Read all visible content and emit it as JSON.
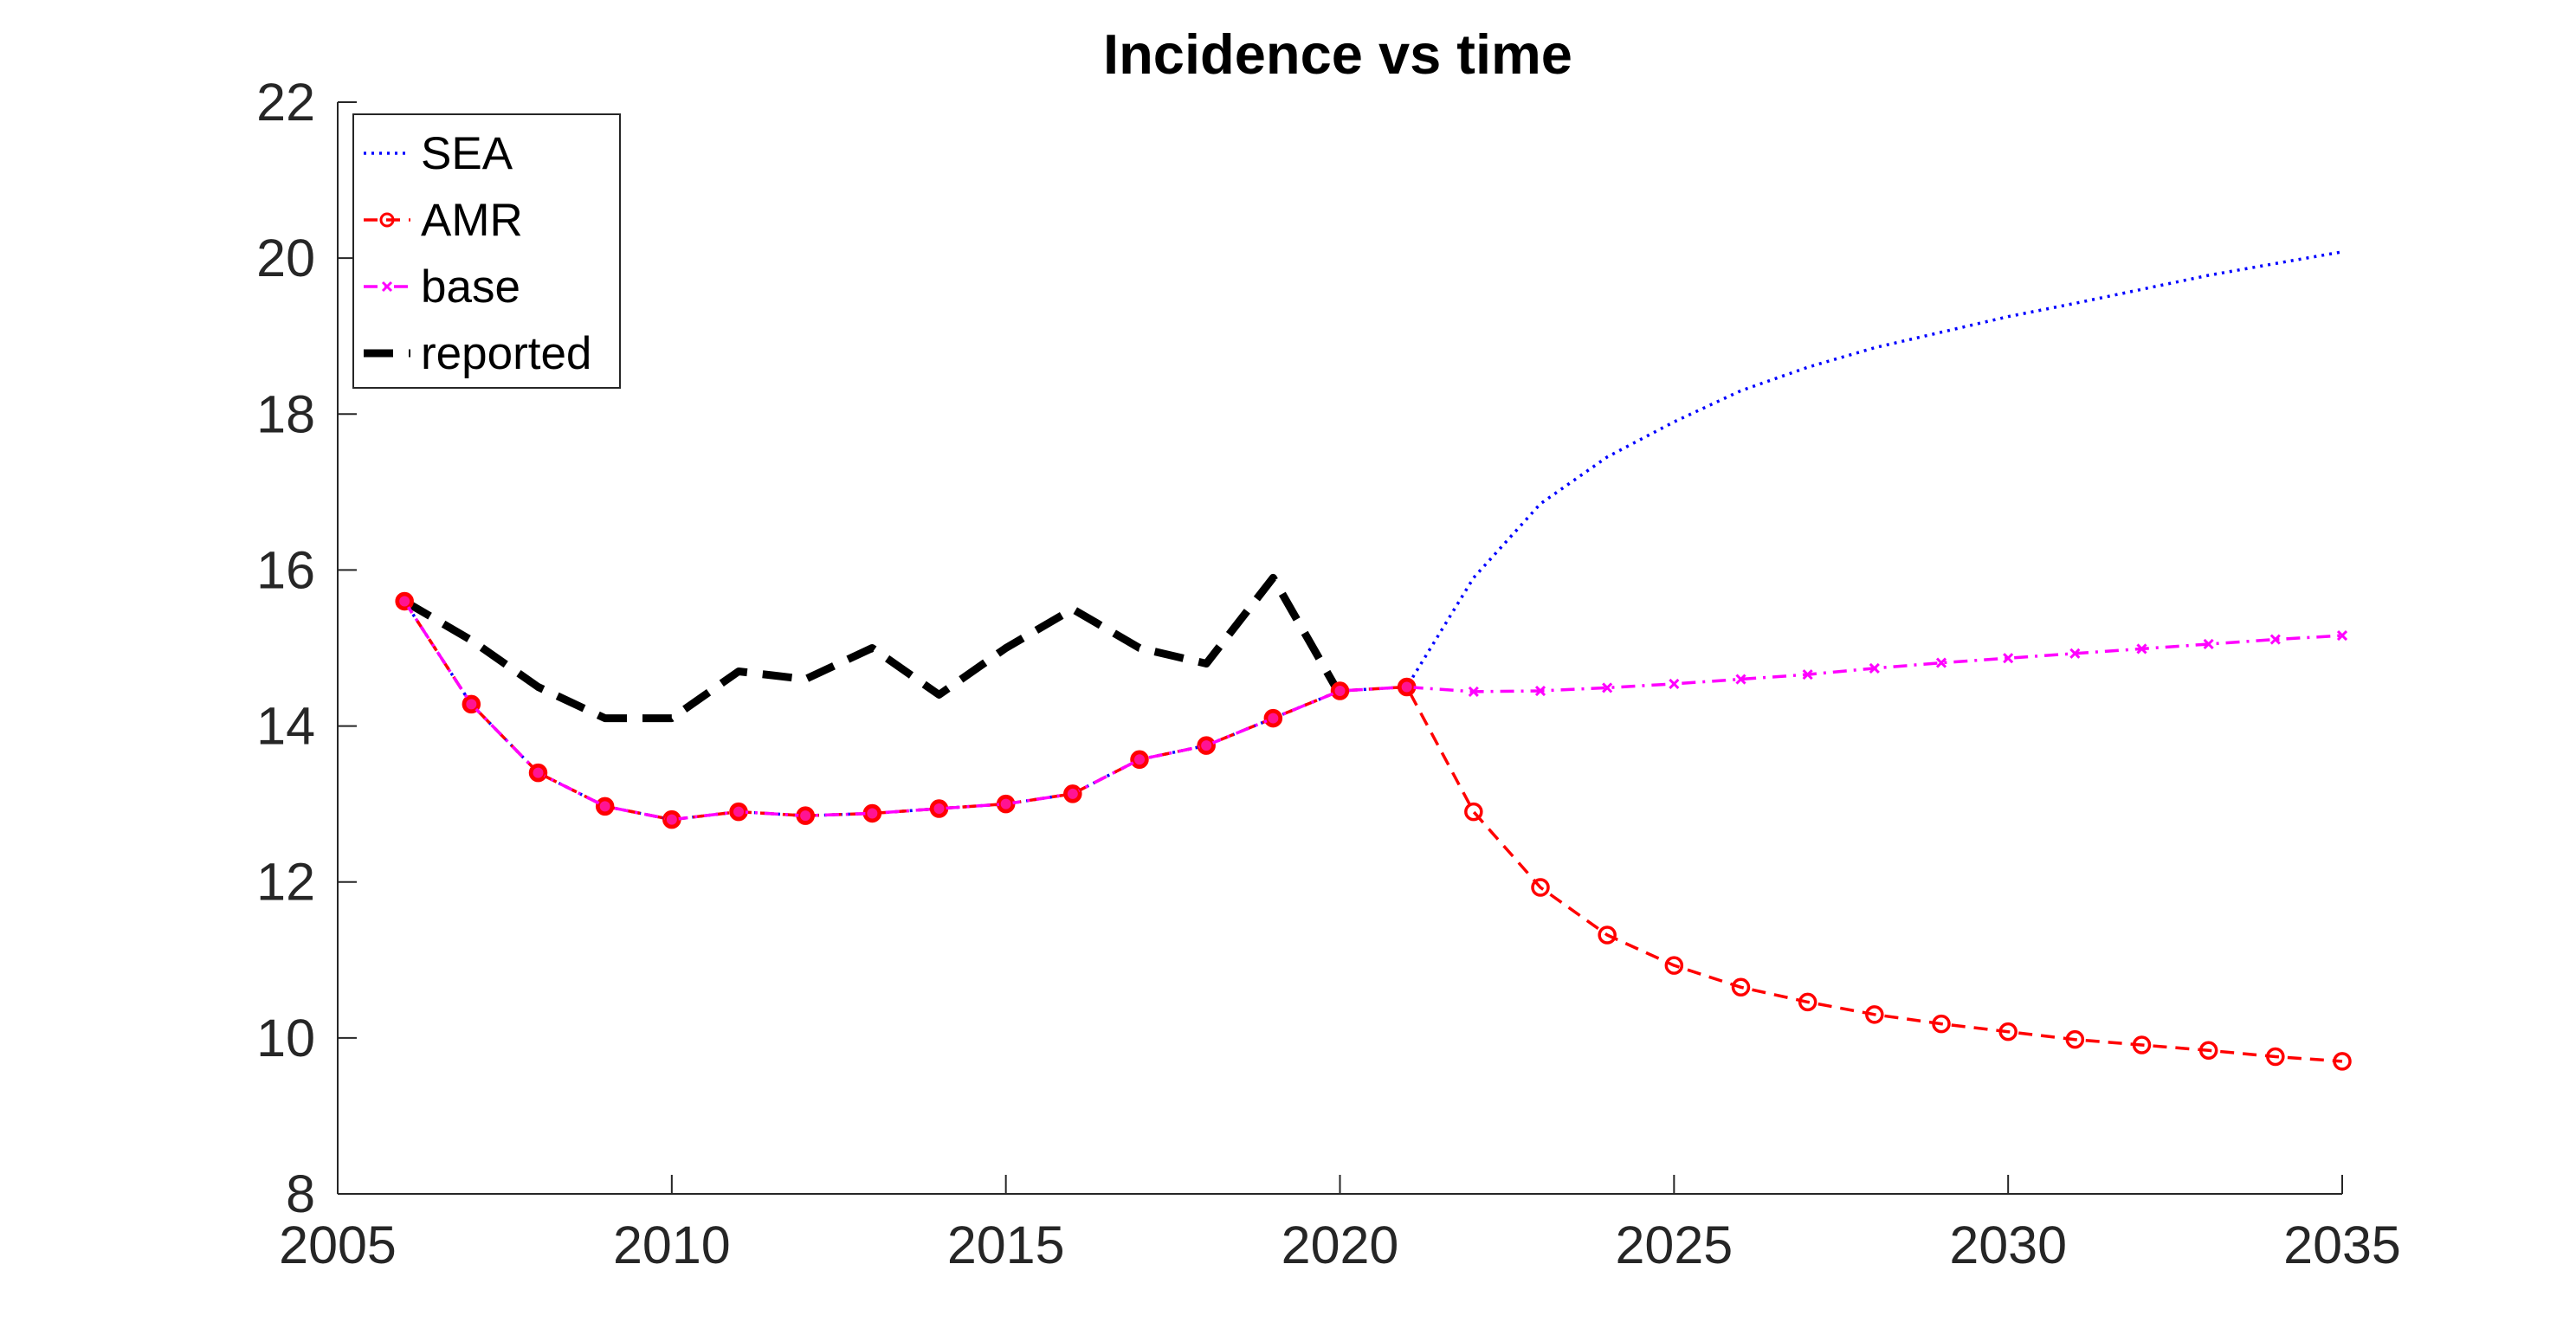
{
  "chart_data": {
    "type": "line",
    "title": "Incidence vs time",
    "xlabel": "",
    "ylabel": "",
    "xlim": [
      2005,
      2035
    ],
    "ylim": [
      8,
      22
    ],
    "x_ticks": [
      "2005",
      "2010",
      "2015",
      "2020",
      "2025",
      "2030",
      "2035"
    ],
    "y_ticks": [
      "8",
      "10",
      "12",
      "14",
      "16",
      "18",
      "20",
      "22"
    ],
    "grid": false,
    "legend_position": "top-left",
    "series": [
      {
        "name": "SEA",
        "color": "#0000ff",
        "style": "dotted",
        "marker": "none",
        "x": [
          2006,
          2007,
          2008,
          2009,
          2010,
          2011,
          2012,
          2013,
          2014,
          2015,
          2016,
          2017,
          2018,
          2019,
          2020,
          2021,
          2022,
          2023,
          2024,
          2025,
          2026,
          2027,
          2028,
          2029,
          2030,
          2031,
          2032,
          2033,
          2034,
          2035
        ],
        "y": [
          15.6,
          14.28,
          13.4,
          12.97,
          12.8,
          12.9,
          12.85,
          12.88,
          12.94,
          13.0,
          13.13,
          13.57,
          13.75,
          14.1,
          14.45,
          14.5,
          15.9,
          16.85,
          17.45,
          17.9,
          18.3,
          18.6,
          18.85,
          19.05,
          19.25,
          19.42,
          19.6,
          19.78,
          19.93,
          20.08
        ]
      },
      {
        "name": "AMR",
        "color": "#ff0000",
        "style": "dashed",
        "marker": "circle",
        "x": [
          2006,
          2007,
          2008,
          2009,
          2010,
          2011,
          2012,
          2013,
          2014,
          2015,
          2016,
          2017,
          2018,
          2019,
          2020,
          2021,
          2022,
          2023,
          2024,
          2025,
          2026,
          2027,
          2028,
          2029,
          2030,
          2031,
          2032,
          2033,
          2034,
          2035
        ],
        "y": [
          15.6,
          14.28,
          13.4,
          12.97,
          12.8,
          12.9,
          12.85,
          12.88,
          12.94,
          13.0,
          13.13,
          13.57,
          13.75,
          14.1,
          14.45,
          14.5,
          12.9,
          11.93,
          11.32,
          10.93,
          10.65,
          10.46,
          10.3,
          10.18,
          10.08,
          9.98,
          9.91,
          9.84,
          9.76,
          9.7
        ]
      },
      {
        "name": "base",
        "color": "#ff00ff",
        "style": "dashdot",
        "marker": "x",
        "x": [
          2006,
          2007,
          2008,
          2009,
          2010,
          2011,
          2012,
          2013,
          2014,
          2015,
          2016,
          2017,
          2018,
          2019,
          2020,
          2021,
          2022,
          2023,
          2024,
          2025,
          2026,
          2027,
          2028,
          2029,
          2030,
          2031,
          2032,
          2033,
          2034,
          2035
        ],
        "y": [
          15.6,
          14.28,
          13.4,
          12.97,
          12.8,
          12.9,
          12.85,
          12.88,
          12.94,
          13.0,
          13.13,
          13.57,
          13.75,
          14.1,
          14.45,
          14.5,
          14.44,
          14.45,
          14.49,
          14.54,
          14.6,
          14.66,
          14.74,
          14.81,
          14.87,
          14.93,
          14.99,
          15.05,
          15.11,
          15.16
        ]
      },
      {
        "name": "reported",
        "color": "#000000",
        "style": "thick-dashed",
        "marker": "none",
        "x": [
          2006,
          2007,
          2008,
          2009,
          2010,
          2011,
          2012,
          2013,
          2014,
          2015,
          2016,
          2017,
          2018,
          2019,
          2020
        ],
        "y": [
          15.6,
          15.1,
          14.5,
          14.1,
          14.1,
          14.7,
          14.6,
          15.0,
          14.4,
          15.0,
          15.5,
          15.0,
          14.8,
          15.9,
          14.4
        ]
      }
    ]
  }
}
